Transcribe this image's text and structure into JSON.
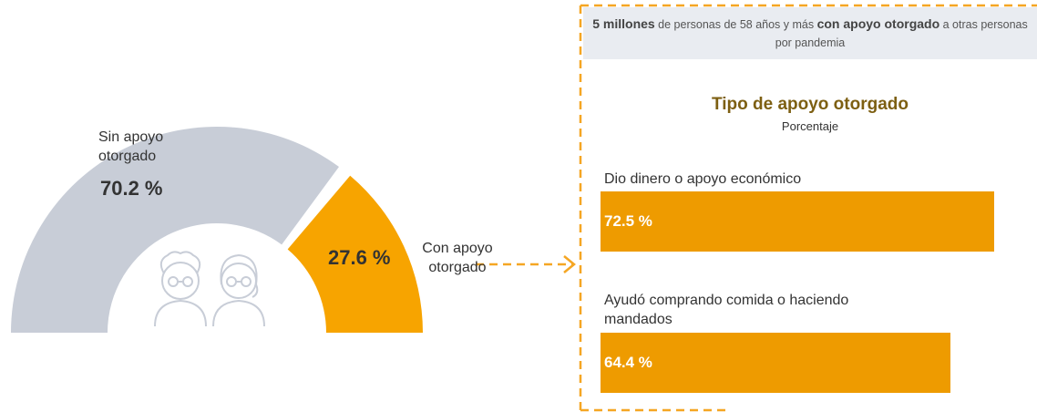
{
  "chart_data": [
    {
      "type": "half-donut",
      "categories": [
        "Sin apoyo otorgado",
        "Con apoyo otorgado"
      ],
      "values": [
        70.2,
        27.6
      ],
      "value_labels": [
        "70.2 %",
        "27.6 %"
      ],
      "colors": [
        "#c8cdd7",
        "#f7a400"
      ],
      "xlim": [
        0,
        100
      ]
    },
    {
      "type": "bar",
      "header": [
        "5 millones",
        " de personas de 58 años y más ",
        "con apoyo otorgado",
        " a otras personas por pandemia"
      ],
      "title": "Tipo de apoyo otorgado",
      "subtitle": "Porcentaje",
      "categories": [
        "Dio dinero o apoyo económico",
        "Ayudó comprando comida o haciendo mandados"
      ],
      "values": [
        72.5,
        64.4
      ],
      "value_labels": [
        "72.5 %",
        "64.4 %"
      ],
      "color": "#ee9b00",
      "xlim": [
        0,
        100
      ]
    }
  ]
}
